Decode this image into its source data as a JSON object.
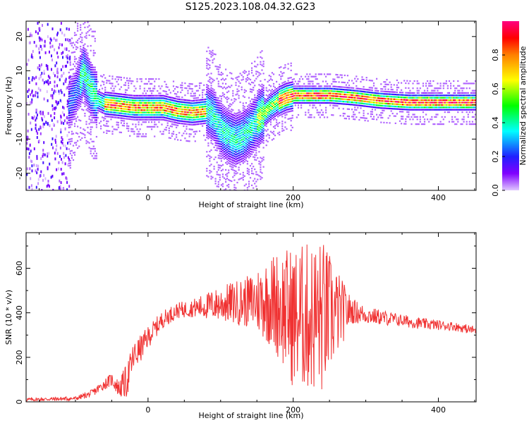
{
  "title": "S125.2023.108.04.32.G23",
  "chart_data": [
    {
      "type": "heatmap",
      "xlabel": "Height of straight line (km)",
      "ylabel": "Frequency (Hz)",
      "xlim": [
        -168,
        452
      ],
      "ylim": [
        -25,
        24.5
      ],
      "x_ticks": [
        0,
        200,
        400
      ],
      "y_ticks": [
        20,
        10,
        0,
        -10,
        -20
      ],
      "colorbar": {
        "label": "Normalized spectral amplitude",
        "range": [
          0.0,
          1.0
        ],
        "ticks": [
          0.0,
          0.2,
          0.4,
          0.6,
          0.8
        ]
      },
      "ridge": {
        "x": [
          -110,
          -100,
          -90,
          -80,
          -70,
          -60,
          -40,
          -20,
          0,
          20,
          40,
          60,
          80,
          90,
          100,
          110,
          120,
          130,
          140,
          150,
          160,
          170,
          180,
          190,
          200,
          220,
          250,
          280,
          320,
          360,
          400,
          452
        ],
        "frequency": [
          0,
          4,
          10,
          5,
          1.5,
          0.5,
          0,
          -0.5,
          -0.5,
          -0.5,
          -1.5,
          -2,
          -1.5,
          -3,
          -7,
          -9,
          -10,
          -9,
          -7,
          -4,
          -2,
          0,
          1.5,
          2.5,
          3,
          3,
          3,
          2.5,
          1.5,
          1,
          1,
          1
        ]
      },
      "grid": false
    },
    {
      "type": "line",
      "xlabel": "Height of straight line (km)",
      "ylabel": "SNR (10 * v/v)",
      "xlim": [
        -168,
        452
      ],
      "ylim": [
        0,
        760
      ],
      "x_ticks": [
        0,
        200,
        400
      ],
      "y_ticks": [
        0,
        200,
        400,
        600
      ],
      "series": [
        {
          "color": "#f03232",
          "x": [
            -168,
            -100,
            -80,
            -70,
            -60,
            -50,
            -40,
            -30,
            -20,
            -10,
            0,
            20,
            40,
            60,
            80,
            100,
            120,
            140,
            160,
            180,
            200,
            220,
            240,
            260,
            280,
            300,
            340,
            380,
            420,
            452
          ],
          "mean": [
            10,
            15,
            35,
            55,
            80,
            100,
            60,
            90,
            200,
            240,
            290,
            370,
            410,
            420,
            430,
            440,
            445,
            450,
            460,
            440,
            380,
            380,
            380,
            400,
            410,
            390,
            370,
            350,
            340,
            320
          ],
          "amplitude": [
            8,
            10,
            15,
            20,
            25,
            30,
            40,
            80,
            70,
            60,
            50,
            40,
            35,
            40,
            60,
            80,
            100,
            120,
            180,
            250,
            320,
            340,
            360,
            200,
            60,
            40,
            30,
            25,
            20,
            20
          ]
        }
      ],
      "grid": false
    }
  ]
}
